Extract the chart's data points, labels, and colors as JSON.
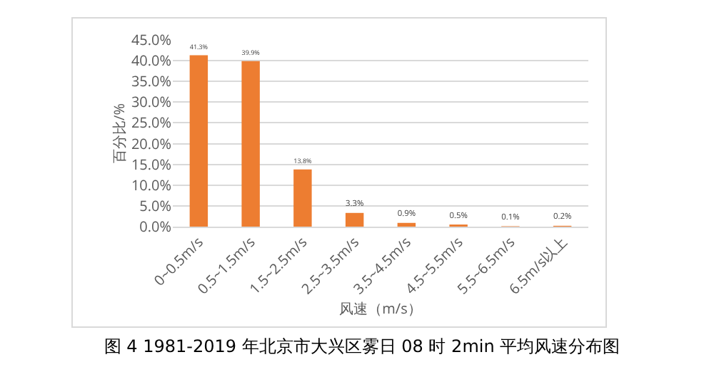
{
  "chart_data": {
    "type": "bar",
    "xlabel": "风速（m/s）",
    "ylabel": "百分比/%",
    "categories": [
      "0~0.5m/s",
      "0.5~1.5m/s",
      "1.5~2.5m/s",
      "2.5~3.5m/s",
      "3.5~4.5m/s",
      "4.5~5.5m/s",
      "5.5~6.5m/s",
      "6.5m/s以上"
    ],
    "values": [
      41.3,
      39.9,
      13.8,
      3.3,
      0.9,
      0.5,
      0.1,
      0.2
    ],
    "color": "#ed7d31",
    "ylim": [
      0,
      45
    ],
    "yticks": [
      {
        "value": 0,
        "label": "0.0%"
      },
      {
        "value": 5,
        "label": "5.0%"
      },
      {
        "value": 10,
        "label": "10.0%"
      },
      {
        "value": 15,
        "label": "15.0%"
      },
      {
        "value": 20,
        "label": "20.0%"
      },
      {
        "value": 25,
        "label": "25.0%"
      },
      {
        "value": 30,
        "label": "30.0%"
      },
      {
        "value": 35,
        "label": "35.0%"
      },
      {
        "value": 40,
        "label": "40.0%"
      },
      {
        "value": 45,
        "label": "45.0%"
      }
    ],
    "value_labels": [
      "41.3%",
      "39.9%",
      "13.8%",
      "3.3%",
      "0.9%",
      "0.5%",
      "0.1%",
      "0.2%"
    ],
    "grid": "y",
    "legend": false,
    "annotations": [
      "图 4 1981-2019 年北京市大兴区雾日 08 时 2min 平均风速分布图"
    ]
  }
}
